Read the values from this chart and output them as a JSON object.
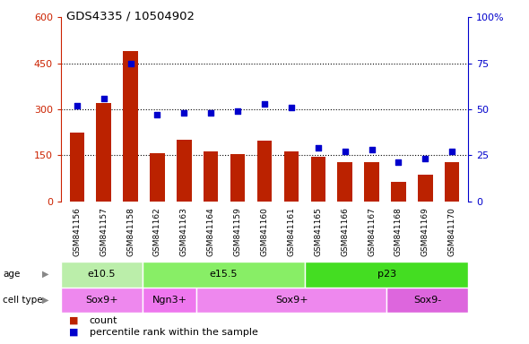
{
  "title": "GDS4335 / 10504902",
  "samples": [
    "GSM841156",
    "GSM841157",
    "GSM841158",
    "GSM841162",
    "GSM841163",
    "GSM841164",
    "GSM841159",
    "GSM841160",
    "GSM841161",
    "GSM841165",
    "GSM841166",
    "GSM841167",
    "GSM841168",
    "GSM841169",
    "GSM841170"
  ],
  "counts": [
    225,
    320,
    490,
    158,
    200,
    162,
    155,
    198,
    163,
    145,
    128,
    128,
    62,
    88,
    128
  ],
  "percentiles": [
    52,
    56,
    75,
    47,
    48,
    48,
    49,
    53,
    51,
    29,
    27,
    28,
    21,
    23,
    27
  ],
  "ylim_left": [
    0,
    600
  ],
  "ylim_right": [
    0,
    100
  ],
  "yticks_left": [
    0,
    150,
    300,
    450,
    600
  ],
  "yticks_right": [
    0,
    25,
    50,
    75,
    100
  ],
  "bar_color": "#bb2200",
  "scatter_color": "#0000cc",
  "age_groups": [
    {
      "label": "e10.5",
      "start": 0,
      "end": 3,
      "color": "#bbeeaa"
    },
    {
      "label": "e15.5",
      "start": 3,
      "end": 9,
      "color": "#88ee66"
    },
    {
      "label": "p23",
      "start": 9,
      "end": 15,
      "color": "#44dd22"
    }
  ],
  "cell_type_groups": [
    {
      "label": "Sox9+",
      "start": 0,
      "end": 3,
      "color": "#ee88ee"
    },
    {
      "label": "Ngn3+",
      "start": 3,
      "end": 5,
      "color": "#ee77ee"
    },
    {
      "label": "Sox9+",
      "start": 5,
      "end": 12,
      "color": "#ee88ee"
    },
    {
      "label": "Sox9-",
      "start": 12,
      "end": 15,
      "color": "#dd66dd"
    }
  ],
  "legend_count_label": "count",
  "legend_pct_label": "percentile rank within the sample",
  "left_axis_color": "#cc2200",
  "right_axis_color": "#0000cc",
  "bar_width": 0.55,
  "bg_xtick_color": "#cccccc"
}
